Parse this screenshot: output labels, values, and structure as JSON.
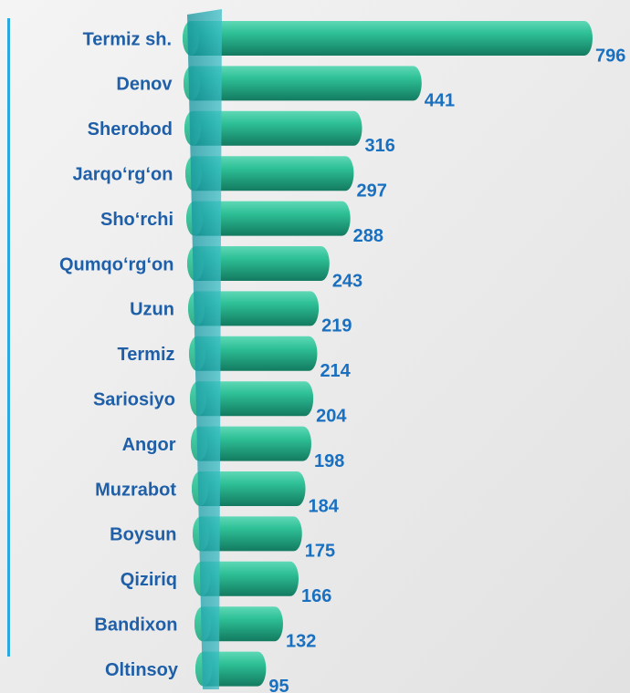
{
  "chart_data": {
    "type": "bar",
    "orientation": "horizontal",
    "categories": [
      "Termiz sh.",
      "Denov",
      "Sherobod",
      "Jarqo‘rg‘on",
      "Sho‘rchi",
      "Qumqo‘rg‘on",
      "Uzun",
      "Termiz",
      "Sariosiyo",
      "Angor",
      "Muzrabot",
      "Boysun",
      "Qiziriq",
      "Bandixon",
      "Oltinsoy"
    ],
    "values": [
      796,
      441,
      316,
      297,
      288,
      243,
      219,
      214,
      204,
      198,
      184,
      175,
      166,
      132,
      95
    ],
    "color": "#22b088",
    "label_color": "#1f5fa8",
    "value_label_color": "#1a70c0"
  }
}
